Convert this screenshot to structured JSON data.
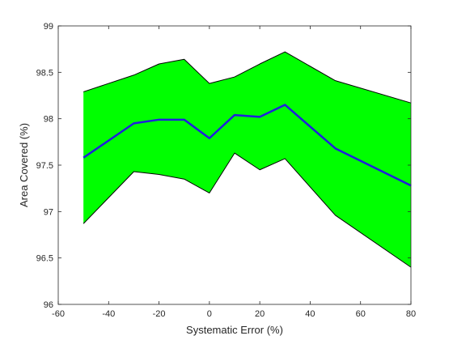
{
  "chart_data": {
    "type": "area",
    "title": "",
    "xlabel": "Systematic Error (%)",
    "ylabel": "Area Covered (%)",
    "xlim": [
      -60,
      80
    ],
    "ylim": [
      96,
      99
    ],
    "xticks": [
      -60,
      -40,
      -20,
      0,
      20,
      40,
      60,
      80
    ],
    "yticks": [
      96,
      96.5,
      97,
      97.5,
      98,
      98.5,
      99
    ],
    "xtick_labels": [
      "-60",
      "-40",
      "-20",
      "0",
      "20",
      "40",
      "60",
      "80"
    ],
    "ytick_labels": [
      "96",
      "96.5",
      "97",
      "97.5",
      "98",
      "98.5",
      "99"
    ],
    "grid": false,
    "x": [
      -50,
      -30,
      -20,
      -10,
      0,
      10,
      20,
      30,
      50,
      80
    ],
    "series": [
      {
        "role": "mean",
        "color": "#1f1fdd",
        "values": [
          97.58,
          97.95,
          97.99,
          97.99,
          97.79,
          98.04,
          98.02,
          98.15,
          97.68,
          97.28
        ]
      },
      {
        "role": "upper",
        "color": "#000000",
        "values": [
          98.29,
          98.47,
          98.59,
          98.64,
          98.38,
          98.45,
          98.59,
          98.72,
          98.41,
          98.17
        ]
      },
      {
        "role": "lower",
        "color": "#000000",
        "values": [
          96.87,
          97.43,
          97.4,
          97.35,
          97.2,
          97.63,
          97.45,
          97.57,
          96.96,
          96.4
        ]
      }
    ],
    "band_color": "#00ff00"
  }
}
